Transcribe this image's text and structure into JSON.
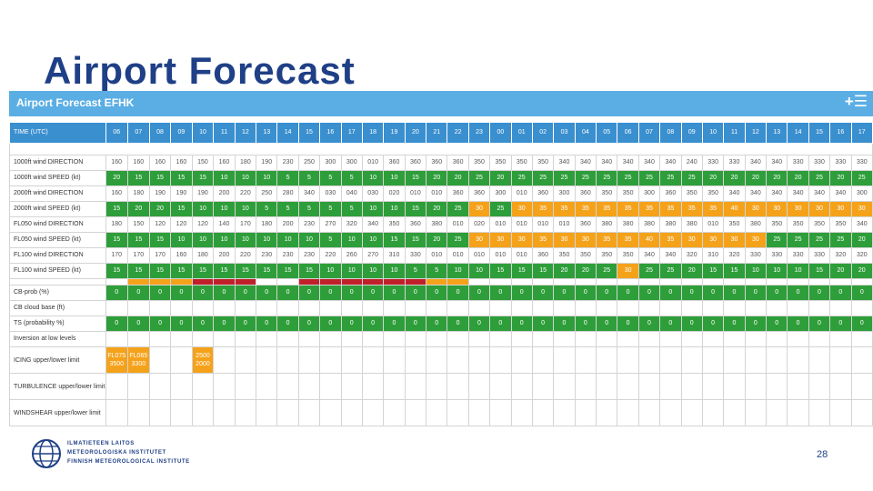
{
  "slide": {
    "title": "Airport Forecast",
    "page_number": "28"
  },
  "panel": {
    "title": "Airport Forecast EFHK",
    "menu_label": "+☰"
  },
  "colors": {
    "header": "#5aaee4",
    "time_row": "#3a8fcf",
    "green": "#2e9e3a",
    "orange": "#f5a21b",
    "red": "#c0202a",
    "title": "#1f3f86"
  },
  "time": {
    "label": "TIME (UTC)",
    "hours": [
      "06",
      "07",
      "08",
      "09",
      "10",
      "11",
      "12",
      "13",
      "14",
      "15",
      "16",
      "17",
      "18",
      "19",
      "20",
      "21",
      "22",
      "23",
      "00",
      "01",
      "02",
      "03",
      "04",
      "05",
      "06",
      "07",
      "08",
      "09",
      "10",
      "11",
      "12",
      "13",
      "14",
      "15",
      "16",
      "17"
    ]
  },
  "rows": [
    {
      "label": "1000ft wind DIRECTION",
      "values": [
        "160",
        "160",
        "160",
        "160",
        "150",
        "160",
        "180",
        "190",
        "230",
        "250",
        "300",
        "300",
        "010",
        "360",
        "360",
        "360",
        "360",
        "350",
        "350",
        "350",
        "350",
        "340",
        "340",
        "340",
        "340",
        "340",
        "340",
        "240",
        "330",
        "330",
        "340",
        "340",
        "330",
        "330",
        "330",
        "330"
      ],
      "colors": [
        "w",
        "w",
        "w",
        "w",
        "w",
        "w",
        "w",
        "w",
        "w",
        "w",
        "w",
        "w",
        "w",
        "w",
        "w",
        "w",
        "w",
        "w",
        "w",
        "w",
        "w",
        "w",
        "w",
        "w",
        "w",
        "w",
        "w",
        "w",
        "w",
        "w",
        "w",
        "w",
        "w",
        "w",
        "w",
        "w"
      ]
    },
    {
      "label": "1000ft wind SPEED (kt)",
      "values": [
        "20",
        "15",
        "15",
        "15",
        "15",
        "10",
        "10",
        "10",
        "5",
        "5",
        "5",
        "5",
        "10",
        "10",
        "15",
        "20",
        "20",
        "25",
        "20",
        "25",
        "25",
        "25",
        "25",
        "25",
        "25",
        "25",
        "25",
        "25",
        "20",
        "20",
        "20",
        "20",
        "20",
        "25",
        "20",
        "25"
      ],
      "colors": [
        "g",
        "g",
        "g",
        "g",
        "g",
        "g",
        "g",
        "g",
        "g",
        "g",
        "g",
        "g",
        "g",
        "g",
        "g",
        "g",
        "g",
        "g",
        "g",
        "g",
        "g",
        "g",
        "g",
        "g",
        "g",
        "g",
        "g",
        "g",
        "g",
        "g",
        "g",
        "g",
        "g",
        "g",
        "g",
        "g"
      ]
    },
    {
      "label": "2000ft wind DIRECTION",
      "values": [
        "160",
        "180",
        "190",
        "190",
        "190",
        "200",
        "220",
        "250",
        "280",
        "340",
        "030",
        "040",
        "030",
        "020",
        "010",
        "010",
        "360",
        "360",
        "300",
        "010",
        "360",
        "300",
        "360",
        "350",
        "350",
        "300",
        "360",
        "350",
        "350",
        "340",
        "340",
        "340",
        "340",
        "340",
        "340",
        "300"
      ],
      "colors": [
        "w",
        "w",
        "w",
        "w",
        "w",
        "w",
        "w",
        "w",
        "w",
        "w",
        "w",
        "w",
        "w",
        "w",
        "w",
        "w",
        "w",
        "w",
        "w",
        "w",
        "w",
        "w",
        "w",
        "w",
        "w",
        "w",
        "w",
        "w",
        "w",
        "w",
        "w",
        "w",
        "w",
        "w",
        "w",
        "w"
      ]
    },
    {
      "label": "2000ft wind SPEED (kt)",
      "values": [
        "15",
        "20",
        "20",
        "15",
        "10",
        "10",
        "10",
        "5",
        "5",
        "5",
        "5",
        "5",
        "10",
        "10",
        "15",
        "20",
        "25",
        "30",
        "25",
        "30",
        "35",
        "35",
        "35",
        "35",
        "35",
        "35",
        "35",
        "35",
        "35",
        "40",
        "30",
        "30",
        "30",
        "30",
        "30",
        "30"
      ],
      "colors": [
        "g",
        "g",
        "g",
        "g",
        "g",
        "g",
        "g",
        "g",
        "g",
        "g",
        "g",
        "g",
        "g",
        "g",
        "g",
        "g",
        "g",
        "o",
        "g",
        "o",
        "o",
        "o",
        "o",
        "o",
        "o",
        "o",
        "o",
        "o",
        "o",
        "o",
        "o",
        "o",
        "o",
        "o",
        "o",
        "o"
      ]
    },
    {
      "label": "FL050 wind DIRECTION",
      "values": [
        "180",
        "150",
        "120",
        "120",
        "120",
        "140",
        "170",
        "180",
        "200",
        "230",
        "270",
        "320",
        "340",
        "350",
        "360",
        "380",
        "010",
        "020",
        "010",
        "010",
        "010",
        "010",
        "360",
        "380",
        "380",
        "380",
        "380",
        "380",
        "010",
        "350",
        "380",
        "350",
        "350",
        "350",
        "350",
        "340"
      ],
      "colors": [
        "w",
        "w",
        "w",
        "w",
        "w",
        "w",
        "w",
        "w",
        "w",
        "w",
        "w",
        "w",
        "w",
        "w",
        "w",
        "w",
        "w",
        "w",
        "w",
        "w",
        "w",
        "w",
        "w",
        "w",
        "w",
        "w",
        "w",
        "w",
        "w",
        "w",
        "w",
        "w",
        "w",
        "w",
        "w",
        "w"
      ]
    },
    {
      "label": "FL050 wind SPEED (kt)",
      "values": [
        "15",
        "15",
        "15",
        "10",
        "10",
        "10",
        "10",
        "10",
        "10",
        "10",
        "5",
        "10",
        "10",
        "15",
        "15",
        "20",
        "25",
        "30",
        "30",
        "30",
        "35",
        "30",
        "30",
        "35",
        "35",
        "40",
        "35",
        "30",
        "30",
        "30",
        "30",
        "25",
        "25",
        "25",
        "25",
        "20"
      ],
      "colors": [
        "g",
        "g",
        "g",
        "g",
        "g",
        "g",
        "g",
        "g",
        "g",
        "g",
        "g",
        "g",
        "g",
        "g",
        "g",
        "g",
        "g",
        "o",
        "o",
        "o",
        "o",
        "o",
        "o",
        "o",
        "o",
        "o",
        "o",
        "o",
        "o",
        "o",
        "o",
        "g",
        "g",
        "g",
        "g",
        "g"
      ]
    },
    {
      "label": "FL100 wind DIRECTION",
      "values": [
        "170",
        "170",
        "170",
        "160",
        "180",
        "200",
        "220",
        "230",
        "230",
        "230",
        "220",
        "260",
        "270",
        "310",
        "330",
        "010",
        "010",
        "010",
        "010",
        "010",
        "360",
        "350",
        "350",
        "350",
        "350",
        "340",
        "340",
        "320",
        "310",
        "320",
        "330",
        "330",
        "330",
        "330",
        "320",
        "320"
      ],
      "colors": [
        "w",
        "w",
        "w",
        "w",
        "w",
        "w",
        "w",
        "w",
        "w",
        "w",
        "w",
        "w",
        "w",
        "w",
        "w",
        "w",
        "w",
        "w",
        "w",
        "w",
        "w",
        "w",
        "w",
        "w",
        "w",
        "w",
        "w",
        "w",
        "w",
        "w",
        "w",
        "w",
        "w",
        "w",
        "w",
        "w"
      ]
    },
    {
      "label": "FL100 wind SPEED (kt)",
      "values": [
        "15",
        "15",
        "15",
        "15",
        "15",
        "15",
        "15",
        "15",
        "15",
        "15",
        "10",
        "10",
        "10",
        "10",
        "5",
        "5",
        "10",
        "10",
        "15",
        "15",
        "15",
        "20",
        "20",
        "25",
        "30",
        "25",
        "25",
        "20",
        "15",
        "15",
        "10",
        "10",
        "10",
        "15",
        "20",
        "20"
      ],
      "colors": [
        "g",
        "g",
        "g",
        "g",
        "g",
        "g",
        "g",
        "g",
        "g",
        "g",
        "g",
        "g",
        "g",
        "g",
        "g",
        "g",
        "g",
        "g",
        "g",
        "g",
        "g",
        "g",
        "g",
        "g",
        "o",
        "g",
        "g",
        "g",
        "g",
        "g",
        "g",
        "g",
        "g",
        "g",
        "g",
        "g"
      ]
    }
  ],
  "bar_strip_colors": [
    "w",
    "o",
    "o",
    "o",
    "r",
    "r",
    "r",
    "w",
    "w",
    "r",
    "r",
    "r",
    "r",
    "r",
    "r",
    "o",
    "o",
    "w",
    "w",
    "w",
    "w",
    "w",
    "w",
    "w",
    "w",
    "w",
    "w",
    "w",
    "w",
    "w",
    "w",
    "w",
    "w",
    "w",
    "w",
    "w"
  ],
  "cb_prob": {
    "label": "CB-prob (%)",
    "values": [
      "0",
      "0",
      "0",
      "0",
      "0",
      "0",
      "0",
      "0",
      "0",
      "0",
      "0",
      "0",
      "0",
      "0",
      "0",
      "0",
      "0",
      "0",
      "0",
      "0",
      "0",
      "0",
      "0",
      "0",
      "0",
      "0",
      "0",
      "0",
      "0",
      "0",
      "0",
      "0",
      "0",
      "0",
      "0",
      "0"
    ]
  },
  "cb_base": {
    "label": "CB cloud base (ft)"
  },
  "ts": {
    "label": "TS (probability %)",
    "values": [
      "0",
      "0",
      "0",
      "0",
      "0",
      "0",
      "0",
      "0",
      "0",
      "0",
      "0",
      "0",
      "0",
      "0",
      "0",
      "0",
      "0",
      "0",
      "0",
      "0",
      "0",
      "0",
      "0",
      "0",
      "0",
      "0",
      "0",
      "0",
      "0",
      "0",
      "0",
      "0",
      "0",
      "0",
      "0",
      "0"
    ]
  },
  "inversion": {
    "label": "Inversion at low levels"
  },
  "icing": {
    "label": "ICING upper/lower limit",
    "cells": [
      {
        "col": 0,
        "upper": "FL075",
        "lower": "3500"
      },
      {
        "col": 1,
        "upper": "FL065",
        "lower": "3300"
      },
      {
        "col": 4,
        "upper": "2500",
        "lower": "2000"
      }
    ]
  },
  "turbulence": {
    "label": "TURBULENCE upper/lower limit"
  },
  "windshear": {
    "label": "WINDSHEAR upper/lower limit"
  },
  "footer": {
    "logo_lines": [
      "ILMATIETEEN LAITOS",
      "METEOROLOGISKA INSTITUTET",
      "FINNISH METEOROLOGICAL INSTITUTE"
    ],
    "logo_icon": "fmi-globe-icon"
  }
}
